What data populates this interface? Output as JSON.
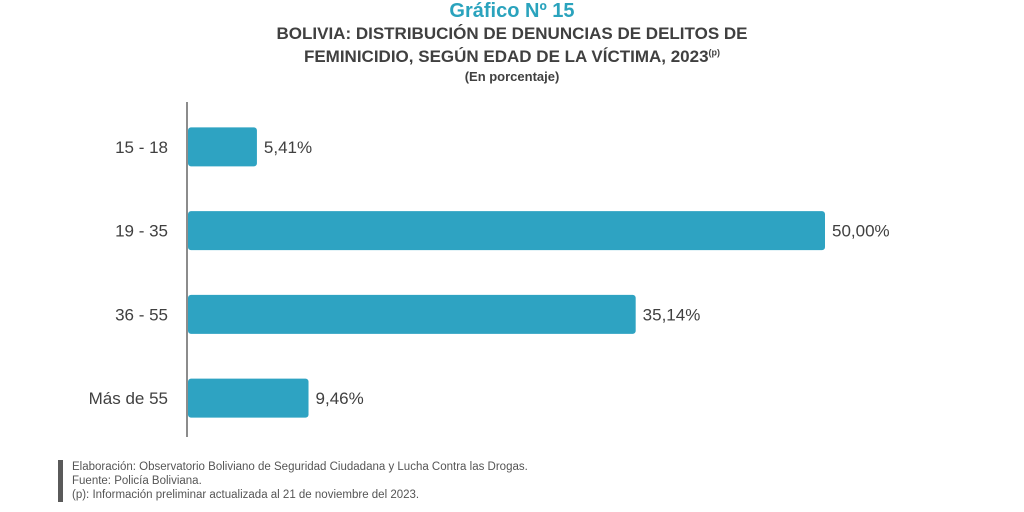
{
  "header": {
    "chart_number": "Gráfico Nº 15",
    "title_line1": "BOLIVIA: DISTRIBUCIÓN DE DENUNCIAS DE DELITOS DE",
    "title_line2": "FEMINICIDIO, SEGÚN EDAD DE LA VÍCTIMA, 2023",
    "title_superscript": "(p)",
    "subtitle": "(En porcentaje)"
  },
  "chart_data": {
    "type": "bar",
    "orientation": "horizontal",
    "categories": [
      "15 - 18",
      "19 - 35",
      "36 - 55",
      "Más de 55"
    ],
    "values": [
      5.41,
      50.0,
      35.14,
      9.46
    ],
    "value_labels": [
      "5,41%",
      "50,00%",
      "35,14%",
      "9,46%"
    ],
    "title": "BOLIVIA: DISTRIBUCIÓN DE DENUNCIAS DE DELITOS DE FEMINICIDIO, SEGÚN EDAD DE LA VÍCTIMA, 2023",
    "subtitle": "(En porcentaje)",
    "xlim": [
      0,
      50
    ],
    "grid": false,
    "legend": "none",
    "bar_color": "#2ea3c2"
  },
  "footer": {
    "line1": "Elaboración: Observatorio Boliviano de Seguridad Ciudadana y Lucha Contra las Drogas.",
    "line2": "Fuente: Policía Boliviana.",
    "line3": "(p): Información preliminar actualizada al 21 de noviembre del 2023."
  },
  "colors": {
    "accent": "#2aa3bd",
    "bar": "#2ea3c2",
    "text": "#404040"
  }
}
